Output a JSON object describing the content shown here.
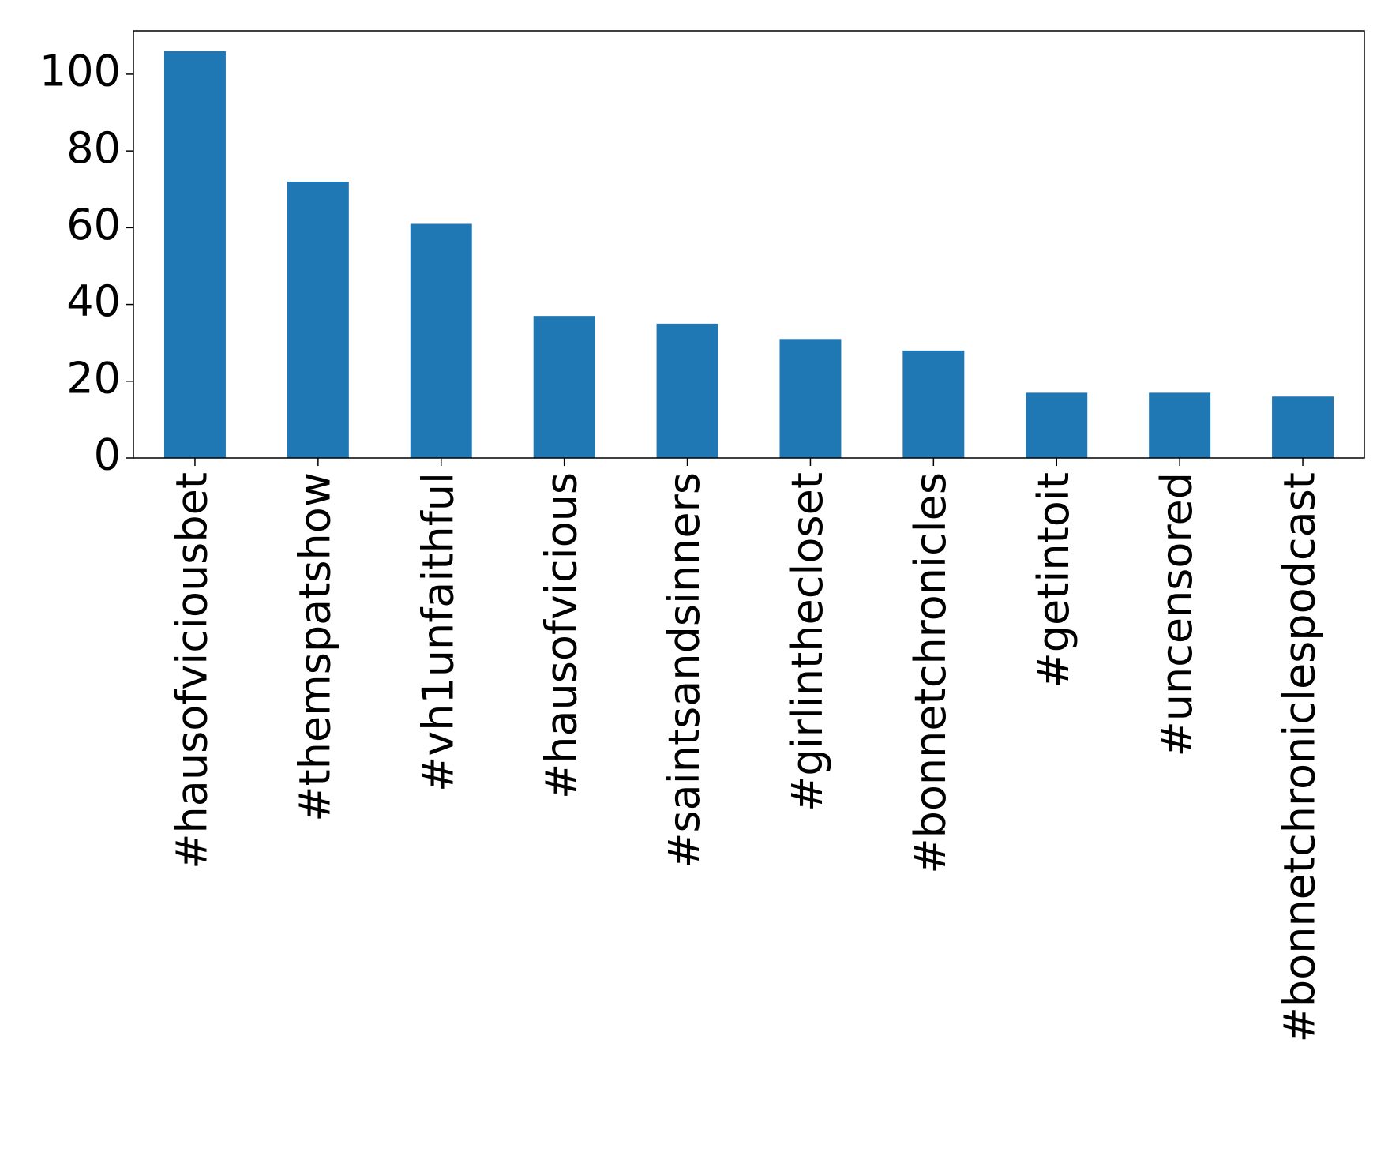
{
  "chart_data": {
    "type": "bar",
    "categories": [
      "#hausofviciousbet",
      "#themspatshow",
      "#vh1unfaithful",
      "#hausofvicious",
      "#saintsandsinners",
      "#girlinthecloset",
      "#bonnetchronicles",
      "#getintoit",
      "#uncensored",
      "#bonnetchroniclespodcast"
    ],
    "values": [
      106,
      72,
      61,
      37,
      35,
      31,
      28,
      17,
      17,
      16
    ],
    "color": "#1f77b4",
    "ylim": [
      0,
      111.3
    ],
    "yticks": [
      0,
      20,
      40,
      60,
      80,
      100
    ],
    "grid": false
  }
}
